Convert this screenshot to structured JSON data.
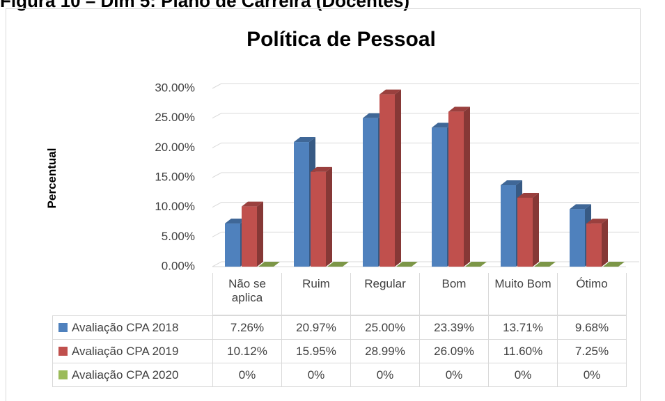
{
  "caption": "Figura 10 – Dim 5: Plano de Carreira (Docentes)",
  "chart_data": {
    "type": "bar3d",
    "title": "Política de Pessoal",
    "y_label": "Percentual",
    "categories": [
      "Não se aplica",
      "Ruim",
      "Regular",
      "Bom",
      "Muito Bom",
      "Ótimo"
    ],
    "series": [
      {
        "name": "Avaliação CPA 2018",
        "color": "#4f81bd",
        "values": [
          7.26,
          20.97,
          25.0,
          23.39,
          13.71,
          9.68
        ],
        "value_labels": [
          "7.26%",
          "20.97%",
          "25.00%",
          "23.39%",
          "13.71%",
          "9.68%"
        ]
      },
      {
        "name": "Avaliação CPA 2019",
        "color": "#c0504d",
        "values": [
          10.12,
          15.95,
          28.99,
          26.09,
          11.6,
          7.25
        ],
        "value_labels": [
          "10.12%",
          "15.95%",
          "28.99%",
          "26.09%",
          "11.60%",
          "7.25%"
        ]
      },
      {
        "name": "Avaliação CPA 2020",
        "color": "#9bbb59",
        "values": [
          0,
          0,
          0,
          0,
          0,
          0
        ],
        "value_labels": [
          "0%",
          "0%",
          "0%",
          "0%",
          "0%",
          "0%"
        ]
      }
    ],
    "ylim": [
      0,
      30
    ],
    "yticks": [
      {
        "value": 0,
        "label": "0.00%"
      },
      {
        "value": 5,
        "label": "5.00%"
      },
      {
        "value": 10,
        "label": "10.00%"
      },
      {
        "value": 15,
        "label": "15.00%"
      },
      {
        "value": 20,
        "label": "20.00%"
      },
      {
        "value": 25,
        "label": "25.00%"
      },
      {
        "value": 30,
        "label": "30.00%"
      }
    ],
    "grid": true,
    "data_table": true
  }
}
